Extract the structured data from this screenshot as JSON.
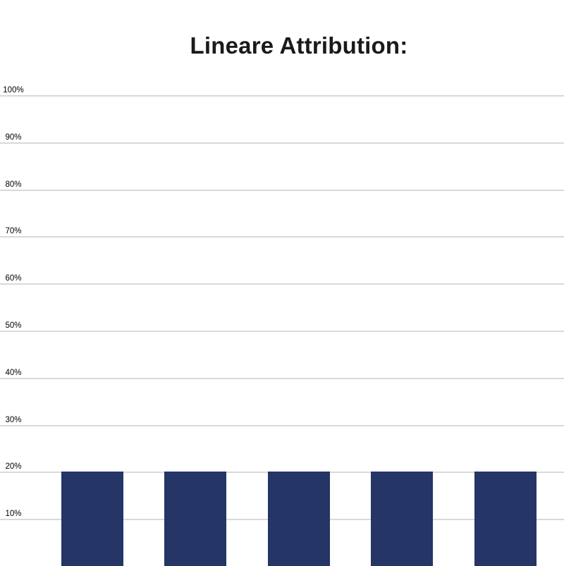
{
  "title": "Lineare Attribution:",
  "colors": {
    "background": "#ffffff",
    "bar": "#243566",
    "gridline": "#d9d9d9",
    "title_text": "#1a1a1a",
    "tick_text": "#000000"
  },
  "y_axis": {
    "tick_labels": [
      "100%",
      "90%",
      "80%",
      "70%",
      "60%",
      "50%",
      "40%",
      "30%",
      "20%",
      "10%"
    ]
  },
  "chart_data": {
    "type": "bar",
    "title": "Lineare Attribution:",
    "categories": [
      "",
      "",
      "",
      "",
      ""
    ],
    "values": [
      20,
      20,
      20,
      20,
      20
    ],
    "xlabel": "",
    "ylabel": "",
    "ylim": [
      0,
      100
    ],
    "yticks": [
      100,
      90,
      80,
      70,
      60,
      50,
      40,
      30,
      20,
      10
    ],
    "ytick_suffix": "%",
    "grid": true,
    "legend": false,
    "bar_color": "#243566",
    "gridline_color": "#d9d9d9"
  }
}
